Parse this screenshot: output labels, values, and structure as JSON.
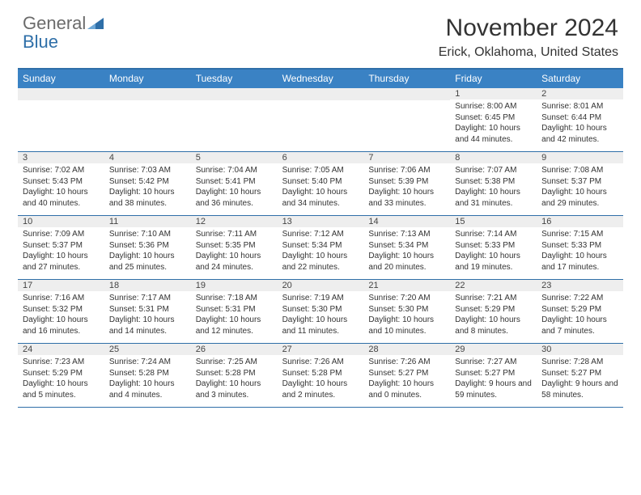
{
  "brand": {
    "word1": "General",
    "word2": "Blue"
  },
  "title": "November 2024",
  "location": "Erick, Oklahoma, United States",
  "colors": {
    "header_bg": "#3a82c4",
    "header_border": "#2f6fa8",
    "daynum_bg": "#eeeeee",
    "text": "#333333",
    "brand_gray": "#6b6b6b",
    "brand_blue": "#2f6fa8"
  },
  "day_names": [
    "Sunday",
    "Monday",
    "Tuesday",
    "Wednesday",
    "Thursday",
    "Friday",
    "Saturday"
  ],
  "weeks": [
    [
      {
        "n": "",
        "sr": "",
        "ss": "",
        "dl": ""
      },
      {
        "n": "",
        "sr": "",
        "ss": "",
        "dl": ""
      },
      {
        "n": "",
        "sr": "",
        "ss": "",
        "dl": ""
      },
      {
        "n": "",
        "sr": "",
        "ss": "",
        "dl": ""
      },
      {
        "n": "",
        "sr": "",
        "ss": "",
        "dl": ""
      },
      {
        "n": "1",
        "sr": "Sunrise: 8:00 AM",
        "ss": "Sunset: 6:45 PM",
        "dl": "Daylight: 10 hours and 44 minutes."
      },
      {
        "n": "2",
        "sr": "Sunrise: 8:01 AM",
        "ss": "Sunset: 6:44 PM",
        "dl": "Daylight: 10 hours and 42 minutes."
      }
    ],
    [
      {
        "n": "3",
        "sr": "Sunrise: 7:02 AM",
        "ss": "Sunset: 5:43 PM",
        "dl": "Daylight: 10 hours and 40 minutes."
      },
      {
        "n": "4",
        "sr": "Sunrise: 7:03 AM",
        "ss": "Sunset: 5:42 PM",
        "dl": "Daylight: 10 hours and 38 minutes."
      },
      {
        "n": "5",
        "sr": "Sunrise: 7:04 AM",
        "ss": "Sunset: 5:41 PM",
        "dl": "Daylight: 10 hours and 36 minutes."
      },
      {
        "n": "6",
        "sr": "Sunrise: 7:05 AM",
        "ss": "Sunset: 5:40 PM",
        "dl": "Daylight: 10 hours and 34 minutes."
      },
      {
        "n": "7",
        "sr": "Sunrise: 7:06 AM",
        "ss": "Sunset: 5:39 PM",
        "dl": "Daylight: 10 hours and 33 minutes."
      },
      {
        "n": "8",
        "sr": "Sunrise: 7:07 AM",
        "ss": "Sunset: 5:38 PM",
        "dl": "Daylight: 10 hours and 31 minutes."
      },
      {
        "n": "9",
        "sr": "Sunrise: 7:08 AM",
        "ss": "Sunset: 5:37 PM",
        "dl": "Daylight: 10 hours and 29 minutes."
      }
    ],
    [
      {
        "n": "10",
        "sr": "Sunrise: 7:09 AM",
        "ss": "Sunset: 5:37 PM",
        "dl": "Daylight: 10 hours and 27 minutes."
      },
      {
        "n": "11",
        "sr": "Sunrise: 7:10 AM",
        "ss": "Sunset: 5:36 PM",
        "dl": "Daylight: 10 hours and 25 minutes."
      },
      {
        "n": "12",
        "sr": "Sunrise: 7:11 AM",
        "ss": "Sunset: 5:35 PM",
        "dl": "Daylight: 10 hours and 24 minutes."
      },
      {
        "n": "13",
        "sr": "Sunrise: 7:12 AM",
        "ss": "Sunset: 5:34 PM",
        "dl": "Daylight: 10 hours and 22 minutes."
      },
      {
        "n": "14",
        "sr": "Sunrise: 7:13 AM",
        "ss": "Sunset: 5:34 PM",
        "dl": "Daylight: 10 hours and 20 minutes."
      },
      {
        "n": "15",
        "sr": "Sunrise: 7:14 AM",
        "ss": "Sunset: 5:33 PM",
        "dl": "Daylight: 10 hours and 19 minutes."
      },
      {
        "n": "16",
        "sr": "Sunrise: 7:15 AM",
        "ss": "Sunset: 5:33 PM",
        "dl": "Daylight: 10 hours and 17 minutes."
      }
    ],
    [
      {
        "n": "17",
        "sr": "Sunrise: 7:16 AM",
        "ss": "Sunset: 5:32 PM",
        "dl": "Daylight: 10 hours and 16 minutes."
      },
      {
        "n": "18",
        "sr": "Sunrise: 7:17 AM",
        "ss": "Sunset: 5:31 PM",
        "dl": "Daylight: 10 hours and 14 minutes."
      },
      {
        "n": "19",
        "sr": "Sunrise: 7:18 AM",
        "ss": "Sunset: 5:31 PM",
        "dl": "Daylight: 10 hours and 12 minutes."
      },
      {
        "n": "20",
        "sr": "Sunrise: 7:19 AM",
        "ss": "Sunset: 5:30 PM",
        "dl": "Daylight: 10 hours and 11 minutes."
      },
      {
        "n": "21",
        "sr": "Sunrise: 7:20 AM",
        "ss": "Sunset: 5:30 PM",
        "dl": "Daylight: 10 hours and 10 minutes."
      },
      {
        "n": "22",
        "sr": "Sunrise: 7:21 AM",
        "ss": "Sunset: 5:29 PM",
        "dl": "Daylight: 10 hours and 8 minutes."
      },
      {
        "n": "23",
        "sr": "Sunrise: 7:22 AM",
        "ss": "Sunset: 5:29 PM",
        "dl": "Daylight: 10 hours and 7 minutes."
      }
    ],
    [
      {
        "n": "24",
        "sr": "Sunrise: 7:23 AM",
        "ss": "Sunset: 5:29 PM",
        "dl": "Daylight: 10 hours and 5 minutes."
      },
      {
        "n": "25",
        "sr": "Sunrise: 7:24 AM",
        "ss": "Sunset: 5:28 PM",
        "dl": "Daylight: 10 hours and 4 minutes."
      },
      {
        "n": "26",
        "sr": "Sunrise: 7:25 AM",
        "ss": "Sunset: 5:28 PM",
        "dl": "Daylight: 10 hours and 3 minutes."
      },
      {
        "n": "27",
        "sr": "Sunrise: 7:26 AM",
        "ss": "Sunset: 5:28 PM",
        "dl": "Daylight: 10 hours and 2 minutes."
      },
      {
        "n": "28",
        "sr": "Sunrise: 7:26 AM",
        "ss": "Sunset: 5:27 PM",
        "dl": "Daylight: 10 hours and 0 minutes."
      },
      {
        "n": "29",
        "sr": "Sunrise: 7:27 AM",
        "ss": "Sunset: 5:27 PM",
        "dl": "Daylight: 9 hours and 59 minutes."
      },
      {
        "n": "30",
        "sr": "Sunrise: 7:28 AM",
        "ss": "Sunset: 5:27 PM",
        "dl": "Daylight: 9 hours and 58 minutes."
      }
    ]
  ]
}
